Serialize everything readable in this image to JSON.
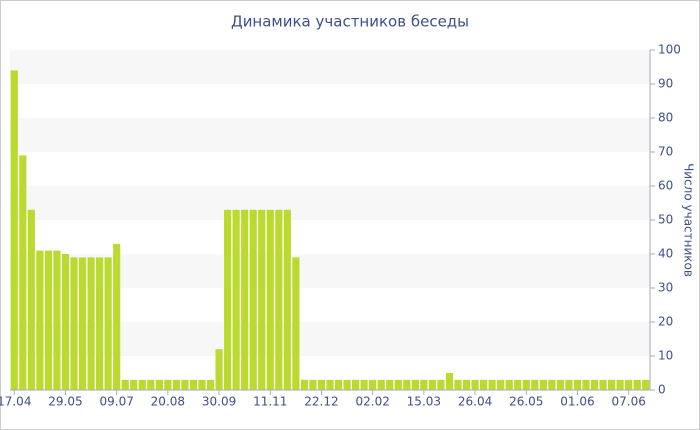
{
  "chart_data": {
    "type": "bar",
    "title": "Динамика участников беседы",
    "y_label": "Число участников",
    "categories": [
      "17.04",
      null,
      null,
      null,
      null,
      null,
      "29.05",
      null,
      null,
      null,
      null,
      null,
      "09.07",
      null,
      null,
      null,
      null,
      null,
      "20.08",
      null,
      null,
      null,
      null,
      null,
      "30.09",
      null,
      null,
      null,
      null,
      null,
      "11.11",
      null,
      null,
      null,
      null,
      null,
      "22.12",
      null,
      null,
      null,
      null,
      null,
      "02.02",
      null,
      null,
      null,
      null,
      null,
      "15.03",
      null,
      null,
      null,
      null,
      null,
      "26.04",
      null,
      null,
      null,
      null,
      null,
      "26.05",
      null,
      null,
      null,
      null,
      null,
      "01.06",
      null,
      null,
      null,
      null,
      null,
      "07.06",
      null,
      null
    ],
    "values": [
      94,
      69,
      53,
      41,
      41,
      41,
      40,
      39,
      39,
      39,
      39,
      39,
      43,
      3,
      3,
      3,
      3,
      3,
      3,
      3,
      3,
      3,
      3,
      3,
      12,
      53,
      53,
      53,
      53,
      53,
      53,
      53,
      53,
      39,
      3,
      3,
      3,
      3,
      3,
      3,
      3,
      3,
      3,
      3,
      3,
      3,
      3,
      3,
      3,
      3,
      3,
      5,
      3,
      3,
      3,
      3,
      3,
      3,
      3,
      3,
      3,
      3,
      3,
      3,
      3,
      3,
      3,
      3,
      3,
      3,
      3,
      3,
      3,
      3,
      3
    ],
    "color": "#bada2f",
    "ylim": [
      0,
      100
    ],
    "yticks": [
      0,
      10,
      20,
      30,
      40,
      50,
      60,
      70,
      80,
      90,
      100
    ],
    "y_axis_side": "right",
    "alternate_bands": true
  }
}
